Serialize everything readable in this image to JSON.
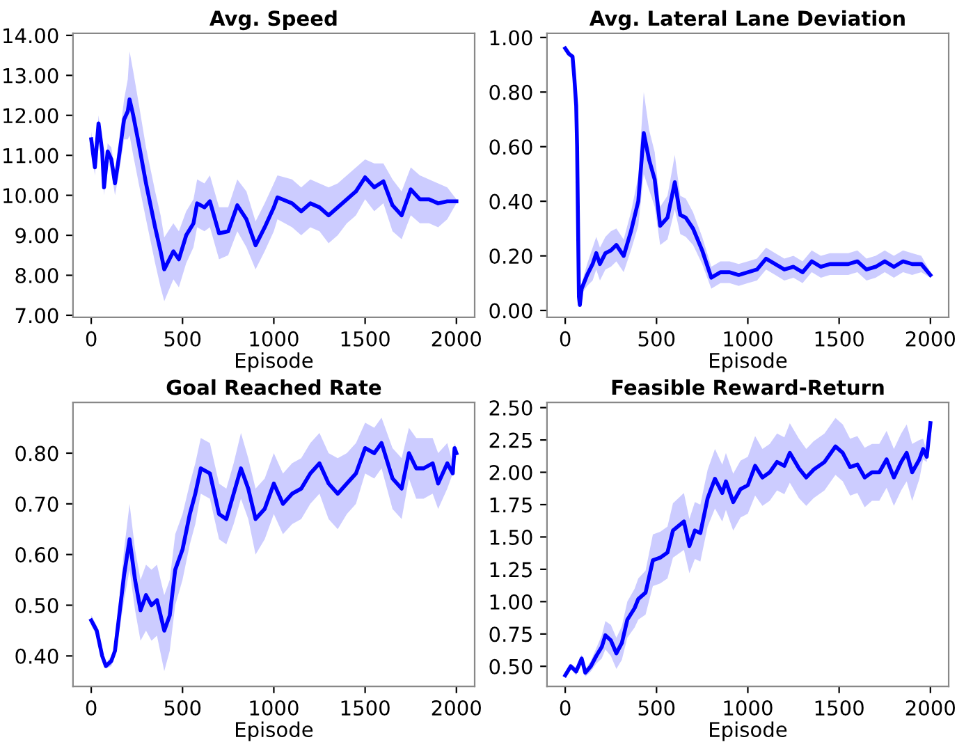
{
  "chart_data": [
    {
      "type": "line",
      "title": "Avg. Speed",
      "xlabel": "Episode",
      "xlim": [
        -100,
        2100
      ],
      "xticks": [
        0,
        500,
        1000,
        1500,
        2000
      ],
      "ylim": [
        6.95,
        14.05
      ],
      "yticks": [
        {
          "value": 7,
          "label": "7.00"
        },
        {
          "value": 8,
          "label": "8.00"
        },
        {
          "value": 9,
          "label": "9.00"
        },
        {
          "value": 10,
          "label": "10.00"
        },
        {
          "value": 11,
          "label": "11.00"
        },
        {
          "value": 12,
          "label": "12.00"
        },
        {
          "value": 13,
          "label": "13.00"
        },
        {
          "value": 14,
          "label": "14.00"
        }
      ],
      "grid": false,
      "legend": false,
      "series": [
        {
          "color": "#0000ff",
          "x": [
            0,
            20,
            40,
            60,
            70,
            90,
            110,
            130,
            150,
            180,
            200,
            210,
            230,
            260,
            300,
            350,
            380,
            400,
            450,
            480,
            520,
            560,
            580,
            620,
            650,
            700,
            750,
            800,
            850,
            900,
            950,
            1000,
            1020,
            1100,
            1150,
            1200,
            1250,
            1300,
            1350,
            1400,
            1450,
            1500,
            1550,
            1600,
            1650,
            1700,
            1750,
            1800,
            1850,
            1900,
            1950,
            2000
          ],
          "values": [
            11.4,
            10.7,
            11.8,
            11.1,
            10.2,
            11.1,
            10.9,
            10.3,
            10.9,
            11.9,
            12.1,
            12.4,
            12.0,
            11.3,
            10.3,
            9.2,
            8.6,
            8.15,
            8.6,
            8.4,
            9.0,
            9.3,
            9.8,
            9.7,
            9.85,
            9.05,
            9.1,
            9.75,
            9.4,
            8.75,
            9.2,
            9.7,
            9.95,
            9.8,
            9.6,
            9.8,
            9.7,
            9.5,
            9.7,
            9.9,
            10.1,
            10.45,
            10.2,
            10.35,
            9.75,
            9.5,
            10.15,
            9.9,
            9.9,
            9.8,
            9.85,
            9.85
          ],
          "lower": [
            11.2,
            10.5,
            11.6,
            10.9,
            10.0,
            10.9,
            10.6,
            10.0,
            10.5,
            11.4,
            11.4,
            11.5,
            11.0,
            10.3,
            9.4,
            8.3,
            7.7,
            7.35,
            7.9,
            7.7,
            8.3,
            8.7,
            9.2,
            9.1,
            9.2,
            8.4,
            8.5,
            9.1,
            8.7,
            8.15,
            8.6,
            9.1,
            9.4,
            9.2,
            9.0,
            9.2,
            9.1,
            8.8,
            9.0,
            9.3,
            9.5,
            9.9,
            9.6,
            9.8,
            9.1,
            8.9,
            9.5,
            9.3,
            9.3,
            9.2,
            9.4,
            9.8
          ],
          "upper": [
            11.6,
            10.9,
            12.0,
            11.3,
            10.4,
            11.3,
            11.2,
            10.6,
            11.3,
            12.4,
            12.9,
            13.6,
            13.1,
            12.3,
            11.2,
            10.1,
            9.5,
            8.95,
            9.3,
            9.1,
            9.6,
            9.9,
            10.4,
            10.3,
            10.5,
            9.7,
            9.7,
            10.4,
            10.1,
            9.35,
            9.8,
            10.3,
            10.5,
            10.4,
            10.2,
            10.4,
            10.3,
            10.2,
            10.3,
            10.5,
            10.7,
            10.9,
            10.8,
            10.8,
            10.4,
            10.1,
            10.7,
            10.5,
            10.4,
            10.3,
            10.2,
            9.9
          ]
        }
      ]
    },
    {
      "type": "line",
      "title": "Avg. Lateral Lane Deviation",
      "xlabel": "Episode",
      "xlim": [
        -100,
        2100
      ],
      "xticks": [
        0,
        500,
        1000,
        1500,
        2000
      ],
      "ylim": [
        -0.025,
        1.015
      ],
      "yticks": [
        {
          "value": 0,
          "label": "0.00"
        },
        {
          "value": 0.2,
          "label": "0.20"
        },
        {
          "value": 0.4,
          "label": "0.40"
        },
        {
          "value": 0.6,
          "label": "0.60"
        },
        {
          "value": 0.8,
          "label": "0.80"
        },
        {
          "value": 1,
          "label": "1.00"
        }
      ],
      "grid": false,
      "legend": false,
      "series": [
        {
          "color": "#0000ff",
          "x": [
            0,
            20,
            40,
            50,
            60,
            65,
            70,
            75,
            80,
            90,
            120,
            150,
            170,
            190,
            220,
            250,
            280,
            320,
            360,
            400,
            430,
            460,
            490,
            520,
            560,
            600,
            630,
            660,
            700,
            750,
            800,
            850,
            900,
            950,
            1000,
            1050,
            1100,
            1150,
            1200,
            1250,
            1300,
            1350,
            1400,
            1450,
            1500,
            1550,
            1600,
            1650,
            1700,
            1750,
            1800,
            1850,
            1900,
            1950,
            2000
          ],
          "values": [
            0.96,
            0.94,
            0.93,
            0.85,
            0.75,
            0.6,
            0.32,
            0.05,
            0.02,
            0.08,
            0.13,
            0.17,
            0.21,
            0.17,
            0.21,
            0.22,
            0.24,
            0.2,
            0.29,
            0.4,
            0.65,
            0.55,
            0.48,
            0.31,
            0.34,
            0.47,
            0.35,
            0.34,
            0.3,
            0.22,
            0.12,
            0.14,
            0.14,
            0.13,
            0.14,
            0.15,
            0.19,
            0.17,
            0.15,
            0.16,
            0.14,
            0.18,
            0.16,
            0.17,
            0.17,
            0.17,
            0.18,
            0.15,
            0.16,
            0.18,
            0.16,
            0.18,
            0.17,
            0.17,
            0.13
          ],
          "lower": [
            0.95,
            0.93,
            0.92,
            0.84,
            0.74,
            0.59,
            0.31,
            0.04,
            0.01,
            0.06,
            0.09,
            0.11,
            0.15,
            0.11,
            0.15,
            0.16,
            0.18,
            0.14,
            0.22,
            0.31,
            0.5,
            0.44,
            0.38,
            0.24,
            0.26,
            0.37,
            0.28,
            0.27,
            0.24,
            0.17,
            0.08,
            0.1,
            0.1,
            0.09,
            0.1,
            0.11,
            0.15,
            0.13,
            0.11,
            0.12,
            0.1,
            0.14,
            0.12,
            0.13,
            0.13,
            0.13,
            0.14,
            0.11,
            0.12,
            0.14,
            0.12,
            0.14,
            0.13,
            0.14,
            0.12
          ],
          "upper": [
            0.97,
            0.95,
            0.94,
            0.86,
            0.76,
            0.61,
            0.33,
            0.06,
            0.03,
            0.1,
            0.17,
            0.23,
            0.27,
            0.23,
            0.27,
            0.29,
            0.3,
            0.26,
            0.36,
            0.49,
            0.8,
            0.66,
            0.58,
            0.38,
            0.42,
            0.57,
            0.42,
            0.41,
            0.36,
            0.27,
            0.16,
            0.18,
            0.18,
            0.17,
            0.18,
            0.19,
            0.23,
            0.21,
            0.19,
            0.2,
            0.18,
            0.22,
            0.2,
            0.21,
            0.21,
            0.21,
            0.22,
            0.19,
            0.2,
            0.22,
            0.2,
            0.22,
            0.21,
            0.2,
            0.14
          ]
        }
      ]
    },
    {
      "type": "line",
      "title": "Goal Reached Rate",
      "xlabel": "Episode",
      "xlim": [
        -100,
        2100
      ],
      "xticks": [
        0,
        500,
        1000,
        1500,
        2000
      ],
      "ylim": [
        0.34,
        0.9
      ],
      "yticks": [
        {
          "value": 0.4,
          "label": "0.40"
        },
        {
          "value": 0.5,
          "label": "0.50"
        },
        {
          "value": 0.6,
          "label": "0.60"
        },
        {
          "value": 0.7,
          "label": "0.70"
        },
        {
          "value": 0.8,
          "label": "0.80"
        }
      ],
      "grid": false,
      "legend": false,
      "series": [
        {
          "color": "#0000ff",
          "x": [
            0,
            30,
            60,
            80,
            110,
            130,
            150,
            180,
            210,
            240,
            270,
            300,
            330,
            360,
            400,
            430,
            460,
            500,
            540,
            570,
            600,
            650,
            700,
            740,
            780,
            820,
            860,
            900,
            950,
            1000,
            1050,
            1100,
            1150,
            1200,
            1250,
            1300,
            1350,
            1400,
            1450,
            1500,
            1550,
            1590,
            1650,
            1700,
            1740,
            1780,
            1820,
            1870,
            1900,
            1950,
            1980,
            1990,
            2000
          ],
          "values": [
            0.47,
            0.45,
            0.4,
            0.38,
            0.39,
            0.41,
            0.47,
            0.56,
            0.63,
            0.55,
            0.49,
            0.52,
            0.5,
            0.51,
            0.45,
            0.48,
            0.57,
            0.61,
            0.68,
            0.72,
            0.77,
            0.76,
            0.68,
            0.67,
            0.72,
            0.77,
            0.73,
            0.67,
            0.69,
            0.74,
            0.7,
            0.72,
            0.73,
            0.76,
            0.78,
            0.74,
            0.72,
            0.74,
            0.76,
            0.81,
            0.8,
            0.82,
            0.75,
            0.73,
            0.8,
            0.77,
            0.77,
            0.78,
            0.74,
            0.78,
            0.76,
            0.81,
            0.8
          ],
          "lower": [
            0.46,
            0.44,
            0.39,
            0.375,
            0.38,
            0.4,
            0.44,
            0.51,
            0.57,
            0.49,
            0.43,
            0.45,
            0.43,
            0.44,
            0.37,
            0.41,
            0.5,
            0.55,
            0.62,
            0.66,
            0.72,
            0.71,
            0.63,
            0.62,
            0.66,
            0.71,
            0.67,
            0.6,
            0.63,
            0.68,
            0.64,
            0.66,
            0.67,
            0.7,
            0.72,
            0.67,
            0.65,
            0.68,
            0.7,
            0.76,
            0.75,
            0.77,
            0.69,
            0.67,
            0.75,
            0.71,
            0.71,
            0.72,
            0.69,
            0.73,
            0.76,
            0.8,
            0.79
          ],
          "upper": [
            0.48,
            0.46,
            0.41,
            0.385,
            0.4,
            0.42,
            0.5,
            0.61,
            0.7,
            0.61,
            0.55,
            0.58,
            0.57,
            0.58,
            0.52,
            0.55,
            0.64,
            0.68,
            0.74,
            0.78,
            0.83,
            0.82,
            0.74,
            0.73,
            0.78,
            0.84,
            0.79,
            0.73,
            0.75,
            0.8,
            0.76,
            0.78,
            0.79,
            0.82,
            0.84,
            0.8,
            0.79,
            0.8,
            0.82,
            0.86,
            0.85,
            0.87,
            0.81,
            0.79,
            0.85,
            0.83,
            0.83,
            0.83,
            0.8,
            0.82,
            0.78,
            0.82,
            0.81
          ]
        }
      ]
    },
    {
      "type": "line",
      "title": "Feasible Reward-Return",
      "xlabel": "Episode",
      "xlim": [
        -100,
        2100
      ],
      "xticks": [
        0,
        500,
        1000,
        1500,
        2000
      ],
      "ylim": [
        0.345,
        2.54
      ],
      "yticks": [
        {
          "value": 0.5,
          "label": "0.50"
        },
        {
          "value": 0.75,
          "label": "0.75"
        },
        {
          "value": 1,
          "label": "1.00"
        },
        {
          "value": 1.25,
          "label": "1.25"
        },
        {
          "value": 1.5,
          "label": "1.50"
        },
        {
          "value": 1.75,
          "label": "1.75"
        },
        {
          "value": 2,
          "label": "2.00"
        },
        {
          "value": 2.25,
          "label": "2.25"
        },
        {
          "value": 2.5,
          "label": "2.50"
        }
      ],
      "grid": false,
      "legend": false,
      "series": [
        {
          "color": "#0000ff",
          "x": [
            0,
            30,
            60,
            90,
            110,
            140,
            170,
            200,
            220,
            250,
            280,
            310,
            340,
            380,
            400,
            440,
            480,
            520,
            560,
            590,
            650,
            680,
            710,
            740,
            780,
            820,
            860,
            880,
            920,
            960,
            1000,
            1040,
            1080,
            1120,
            1160,
            1200,
            1230,
            1280,
            1320,
            1360,
            1420,
            1480,
            1520,
            1560,
            1600,
            1640,
            1680,
            1720,
            1760,
            1800,
            1840,
            1870,
            1900,
            1940,
            1960,
            1980,
            2000
          ],
          "values": [
            0.43,
            0.5,
            0.46,
            0.56,
            0.45,
            0.5,
            0.58,
            0.65,
            0.74,
            0.7,
            0.6,
            0.68,
            0.86,
            0.95,
            1.02,
            1.07,
            1.32,
            1.34,
            1.38,
            1.55,
            1.62,
            1.43,
            1.55,
            1.53,
            1.8,
            1.95,
            1.84,
            1.93,
            1.77,
            1.87,
            1.9,
            2.05,
            1.96,
            2.0,
            2.08,
            2.05,
            2.15,
            2.03,
            1.96,
            2.02,
            2.08,
            2.2,
            2.15,
            2.04,
            2.06,
            1.96,
            2.0,
            2.0,
            2.1,
            1.96,
            2.08,
            2.15,
            2.0,
            2.1,
            2.18,
            2.12,
            2.38
          ],
          "lower": [
            0.41,
            0.48,
            0.43,
            0.53,
            0.42,
            0.46,
            0.52,
            0.56,
            0.63,
            0.58,
            0.48,
            0.55,
            0.72,
            0.8,
            0.86,
            0.9,
            1.12,
            1.14,
            1.18,
            1.34,
            1.4,
            1.22,
            1.33,
            1.31,
            1.58,
            1.72,
            1.62,
            1.71,
            1.55,
            1.65,
            1.68,
            1.82,
            1.74,
            1.78,
            1.86,
            1.83,
            1.92,
            1.8,
            1.74,
            1.8,
            1.86,
            1.98,
            1.93,
            1.82,
            1.84,
            1.73,
            1.78,
            1.78,
            1.88,
            1.74,
            1.86,
            1.93,
            1.78,
            1.95,
            2.1,
            2.08,
            2.36
          ],
          "upper": [
            0.45,
            0.52,
            0.49,
            0.59,
            0.48,
            0.54,
            0.64,
            0.74,
            0.85,
            0.82,
            0.72,
            0.81,
            1.0,
            1.1,
            1.18,
            1.24,
            1.52,
            1.54,
            1.58,
            1.76,
            1.84,
            1.64,
            1.77,
            1.75,
            2.02,
            2.18,
            2.06,
            2.15,
            1.99,
            2.09,
            2.12,
            2.28,
            2.18,
            2.22,
            2.3,
            2.27,
            2.38,
            2.26,
            2.18,
            2.24,
            2.3,
            2.42,
            2.37,
            2.26,
            2.28,
            2.19,
            2.22,
            2.22,
            2.32,
            2.18,
            2.3,
            2.37,
            2.22,
            2.25,
            2.26,
            2.16,
            2.4
          ]
        }
      ]
    }
  ]
}
